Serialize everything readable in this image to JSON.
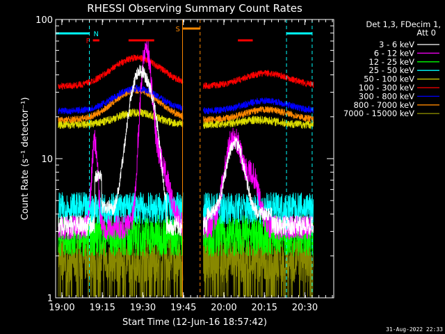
{
  "chart_data": {
    "type": "line",
    "title": "RHESSI Observing Summary Count Rates",
    "xlabel": "Start Time (12-Jun-16 18:57:42)",
    "ylabel": "Count Rate (s⁻¹ detector⁻¹)",
    "x_ticks": [
      "19:00",
      "19:15",
      "19:30",
      "19:45",
      "20:00",
      "20:15",
      "20:30"
    ],
    "x_ticks_min": [
      2.3,
      17.3,
      32.3,
      47.3,
      62.3,
      77.3,
      92.3
    ],
    "xlim_min": [
      0,
      103
    ],
    "y_scale": "log",
    "ylim": [
      1,
      100
    ],
    "y_tick_labels": [
      "1",
      "10",
      "100"
    ],
    "y_tick_values": [
      1,
      10,
      100
    ],
    "legend": {
      "placement": "top-right",
      "header": [
        "Det 1,3, FDecim 1,",
        "Att 0"
      ]
    },
    "series": [
      {
        "name": "3 - 6 keV",
        "color": "#ffffff"
      },
      {
        "name": "6 - 12 keV",
        "color": "#ff00ff"
      },
      {
        "name": "12 - 25 keV",
        "color": "#00ff00"
      },
      {
        "name": "25 - 50 keV",
        "color": "#00ffff"
      },
      {
        "name": "50 - 100 keV",
        "color": "#dddd00"
      },
      {
        "name": "100 - 300 keV",
        "color": "#ff0000"
      },
      {
        "name": "300 - 800 keV",
        "color": "#0000ff"
      },
      {
        "name": "800 - 7000 keV",
        "color": "#ff8800"
      },
      {
        "name": "7000 - 15000 keV",
        "color": "#888800"
      }
    ],
    "data_gaps_min": [
      [
        47.3,
        54.5
      ]
    ],
    "markers": [
      {
        "label": "N",
        "color": "#00ffff",
        "interval_min": [
          0,
          12.5
        ]
      },
      {
        "label": "N",
        "color": "#00ffff",
        "interval_min": [
          85.5,
          95
        ]
      },
      {
        "label": "F",
        "color": "#ff0000",
        "interval_min": [
          13.8,
          16.2
        ]
      },
      {
        "label": "F",
        "color": "#ff0000",
        "interval_min": [
          27,
          36.5
        ]
      },
      {
        "label": "F",
        "color": "#ff0000",
        "interval_min": [
          67.5,
          73
        ]
      },
      {
        "label": "S",
        "color": "#ff8800",
        "interval_min": [
          47,
          53.5
        ]
      }
    ],
    "night_lines_min": [
      12.5,
      85.5,
      95
    ],
    "saa_lines_min": [
      47,
      53.5
    ],
    "timestamp": "31-Aug-2022 22:33"
  }
}
